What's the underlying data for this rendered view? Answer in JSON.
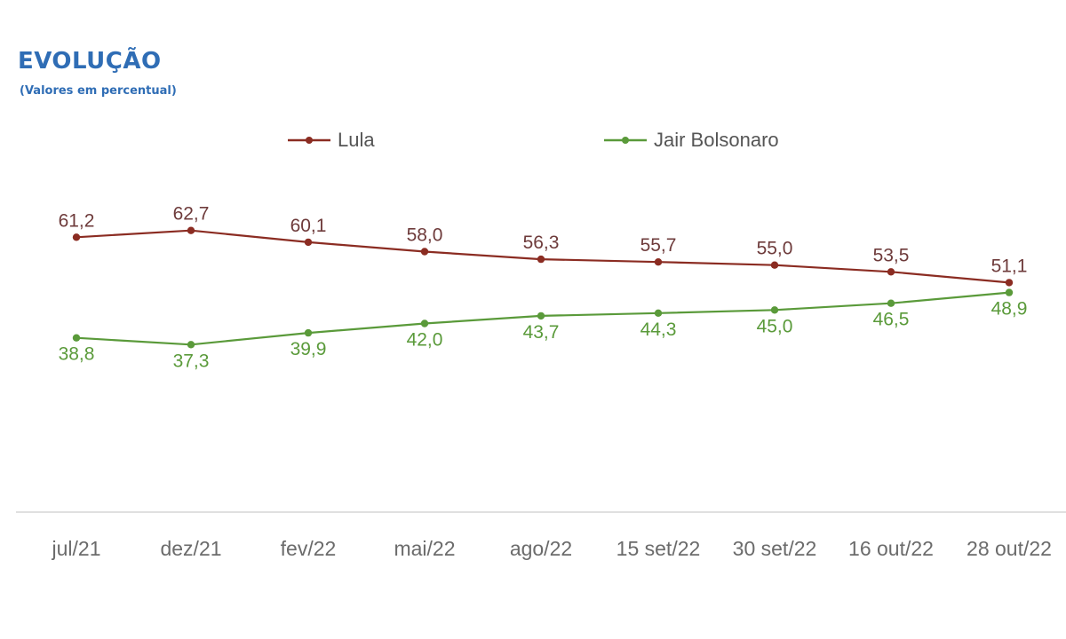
{
  "chart_data": {
    "type": "line",
    "title": "EVOLUÇÃO",
    "subtitle": "(Valores em percentual)",
    "categories": [
      "jul/21",
      "dez/21",
      "fev/22",
      "mai/22",
      "ago/22",
      "15 set/22",
      "30 set/22",
      "16 out/22",
      "28 out/22"
    ],
    "series": [
      {
        "name": "Lula",
        "color": "#8B2C22",
        "values": [
          61.2,
          62.7,
          60.1,
          58.0,
          56.3,
          55.7,
          55.0,
          53.5,
          51.1
        ],
        "labels": [
          "61,2",
          "62,7",
          "60,1",
          "58,0",
          "56,3",
          "55,7",
          "55,0",
          "53,5",
          "51,1"
        ]
      },
      {
        "name": "Jair Bolsonaro",
        "color": "#5A9A3A",
        "values": [
          38.8,
          37.3,
          39.9,
          42.0,
          43.7,
          44.3,
          45.0,
          46.5,
          48.9
        ],
        "labels": [
          "38,8",
          "37,3",
          "39,9",
          "42,0",
          "43,7",
          "44,3",
          "45,0",
          "46,5",
          "48,9"
        ]
      }
    ],
    "xlabel": "",
    "ylabel": "",
    "grid": false,
    "legend_position": "top-center",
    "colors": {
      "title": "#2F6DB5",
      "lula_label": "#6E3B3B",
      "bolsonaro_label": "#5A9A3A",
      "axis_line": "#E0E0E0",
      "tick_label": "#6B6B6B"
    }
  }
}
